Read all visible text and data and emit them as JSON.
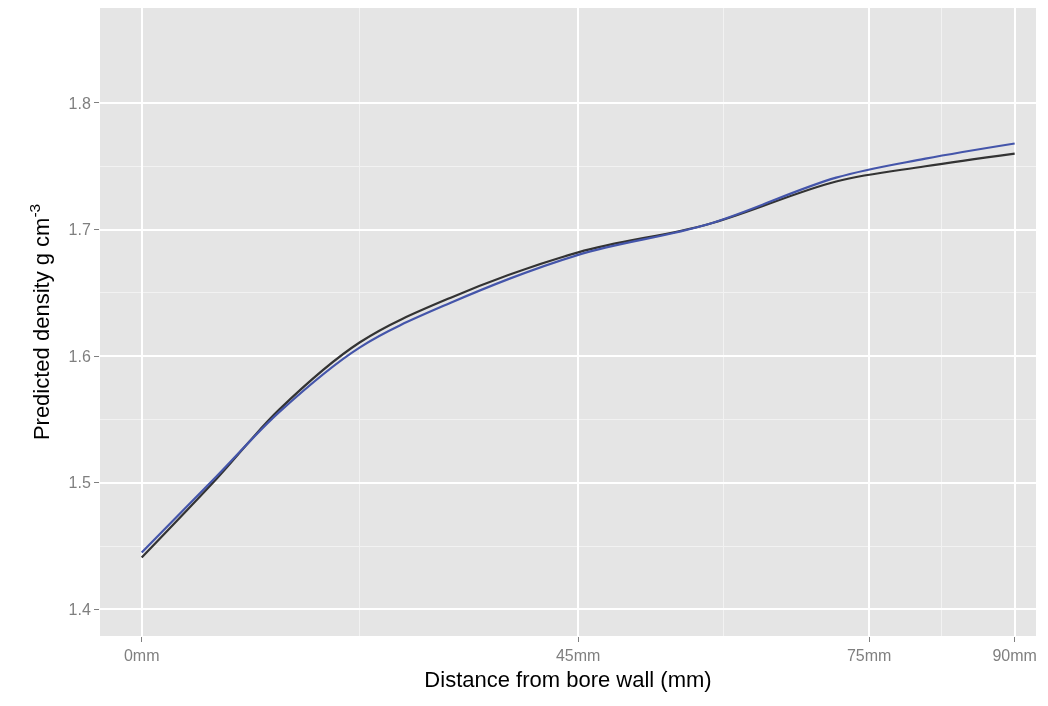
{
  "chart_data": {
    "type": "line",
    "xlabel": "Distance from bore wall (mm)",
    "ylabel": "Predicted density g cm$^{-3}$",
    "xlim": [
      -4.3,
      92.2
    ],
    "ylim": [
      1.379,
      1.875
    ],
    "xticks": [
      {
        "value": 0,
        "label": "0mm"
      },
      {
        "value": 45,
        "label": "45mm"
      },
      {
        "value": 75,
        "label": "75mm"
      },
      {
        "value": 90,
        "label": "90mm"
      }
    ],
    "yticks": [
      1.4,
      1.5,
      1.6,
      1.7,
      1.8
    ],
    "grid": true,
    "series": [
      {
        "color": "#333333",
        "x": [
          0,
          7.7,
          14.2,
          22.5,
          31.8,
          45,
          58.3,
          71.6,
          80.8,
          90
        ],
        "values": [
          1.441,
          1.503,
          1.558,
          1.611,
          1.646,
          1.682,
          1.704,
          1.738,
          1.75,
          1.76
        ]
      },
      {
        "color": "#4455aa",
        "x": [
          0,
          7.7,
          14.2,
          22.5,
          31.8,
          45,
          58.3,
          71.6,
          80.8,
          90
        ],
        "values": [
          1.445,
          1.505,
          1.556,
          1.607,
          1.642,
          1.68,
          1.704,
          1.741,
          1.756,
          1.768
        ]
      }
    ]
  }
}
